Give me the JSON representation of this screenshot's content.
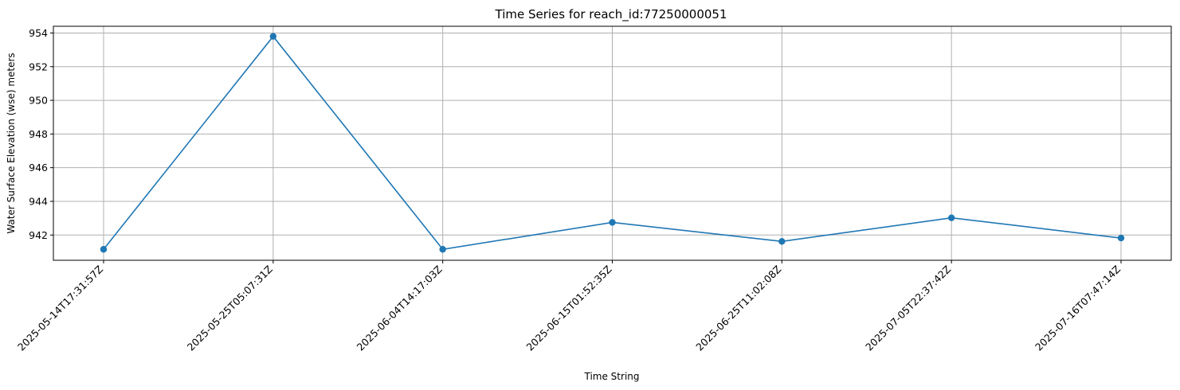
{
  "chart_data": {
    "type": "line",
    "title": "Time Series for reach_id:77250000051",
    "xlabel": "Time String",
    "ylabel": "Water Surface Elevation (wse) meters",
    "categories": [
      "2025-05-14T17:31:57Z",
      "2025-05-25T05:07:31Z",
      "2025-06-04T14:17:03Z",
      "2025-06-15T01:52:35Z",
      "2025-06-25T11:02:08Z",
      "2025-07-05T22:37:42Z",
      "2025-07-16T07:47:14Z"
    ],
    "series": [
      {
        "values": [
          941.15,
          953.8,
          941.15,
          942.75,
          941.62,
          943.02,
          941.82
        ],
        "color": "#1f77b4"
      }
    ],
    "yticks": [
      942,
      944,
      946,
      948,
      950,
      952,
      954
    ],
    "ylim": [
      940.5,
      954.4
    ],
    "grid": true
  }
}
